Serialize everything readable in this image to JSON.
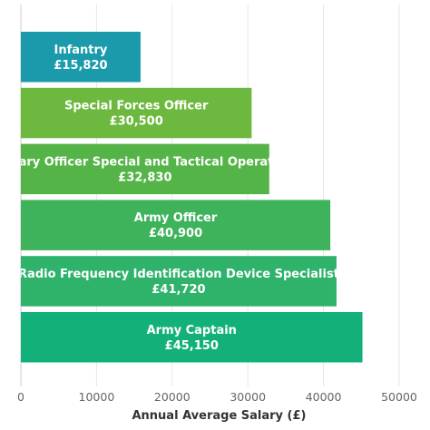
{
  "chart_data": {
    "type": "bar",
    "orientation": "horizontal",
    "categories": [
      "Infantry",
      "Special Forces Officer",
      "Military Officer Special and Tactical Operations",
      "Army Officer",
      "Radio Frequency Identification Device Specialist",
      "Army Captain"
    ],
    "values": [
      15820,
      30500,
      32830,
      40900,
      41720,
      45150
    ],
    "value_labels": [
      "£15,820",
      "£30,500",
      "£32,830",
      "£40,900",
      "£41,720",
      "£45,150"
    ],
    "colors": [
      "#1a9aaa",
      "#6db93f",
      "#55b448",
      "#3fb35c",
      "#2fb26a",
      "#14b07a"
    ],
    "xlabel": "Annual Average Salary (£)",
    "ylabel": "",
    "xlim": [
      0,
      50000
    ],
    "xticks": [
      0,
      10000,
      20000,
      30000,
      40000,
      50000
    ],
    "xtick_labels": [
      "0",
      "10000",
      "20000",
      "30000",
      "40000",
      "50000"
    ],
    "grid": true
  }
}
